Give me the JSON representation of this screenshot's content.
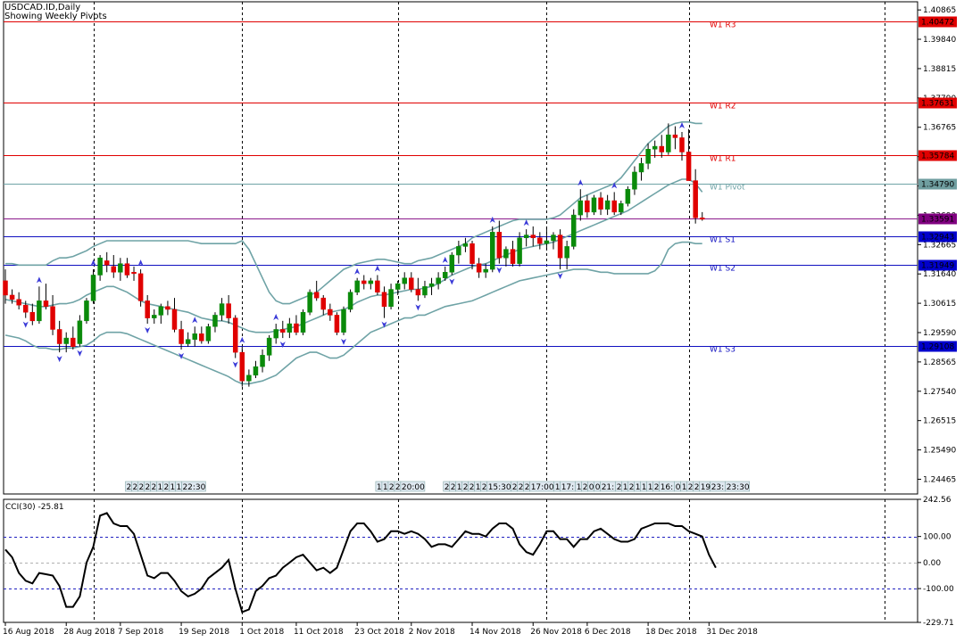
{
  "header": {
    "symbol": "USDCAD.ID,Daily",
    "subtitle": "Showing Weekly Pivots"
  },
  "chart_data": {
    "type": "candlestick",
    "price_ticks": [
      "1.40865",
      "1.39840",
      "1.38815",
      "1.37790",
      "1.36765",
      "1.35740",
      "1.34715",
      "1.33690",
      "1.32665",
      "1.31640",
      "1.30615",
      "1.29590",
      "1.28565",
      "1.27540",
      "1.26515",
      "1.25490",
      "1.24465"
    ],
    "price_range": [
      1.2395,
      1.4115
    ],
    "date_labels": [
      "16 Aug 2018",
      "28 Aug 2018",
      "7 Sep 2018",
      "19 Sep 2018",
      "1 Oct 2018",
      "11 Oct 2018",
      "23 Oct 2018",
      "2 Nov 2018",
      "14 Nov 2018",
      "26 Nov 2018",
      "6 Dec 2018",
      "18 Dec 2018",
      "31 Dec 2018"
    ],
    "date_label_bar_index": [
      0,
      9,
      17,
      26,
      35,
      43,
      52,
      60,
      69,
      78,
      86,
      95,
      104
    ],
    "session_separator_bar_index": [
      13,
      35,
      58,
      80,
      101,
      130
    ],
    "pivot_levels": [
      {
        "name": "W1 R3",
        "price": 1.40472,
        "color": "#e00000",
        "tag_color": "#e00000",
        "tag": "1.40472"
      },
      {
        "name": "W1 R2",
        "price": 1.37631,
        "color": "#e00000",
        "tag_color": "#e00000",
        "tag": "1.37631"
      },
      {
        "name": "W1 R1",
        "price": 1.35784,
        "color": "#e00000",
        "tag_color": "#e00000",
        "tag": "1.35784"
      },
      {
        "name": "W1 Pivot",
        "price": 1.3479,
        "color": "#6fa3a6",
        "tag_color": "#6f9ea0",
        "tag": "1.34790"
      },
      {
        "name": "",
        "price": 1.33591,
        "color": "#8b1a8b",
        "tag_color": "#800080",
        "tag": "1.33591"
      },
      {
        "name": "W1 S1",
        "price": 1.32943,
        "color": "#1010c0",
        "tag_color": "#0000cc",
        "tag": "1.32943"
      },
      {
        "name": "W1 S2",
        "price": 1.31949,
        "color": "#1010c0",
        "tag_color": "#0000cc",
        "tag": "1.31949"
      },
      {
        "name": "W1 S3",
        "price": 1.29108,
        "color": "#1010c0",
        "tag_color": "#0000cc",
        "tag": "1.29108"
      }
    ],
    "colors": {
      "bull": "#0a8a0a",
      "bear": "#e00000",
      "band": "#6fa3a6",
      "fractal": "#3a3ad8",
      "grid": "#000000"
    },
    "candles": [
      [
        1.314,
        1.318,
        1.306,
        1.309
      ],
      [
        1.309,
        1.311,
        1.306,
        1.3075
      ],
      [
        1.3075,
        1.31,
        1.304,
        1.3055
      ],
      [
        1.3055,
        1.307,
        1.301,
        1.303
      ],
      [
        1.303,
        1.306,
        1.2985,
        1.3
      ],
      [
        1.3,
        1.312,
        1.299,
        1.307
      ],
      [
        1.307,
        1.313,
        1.304,
        1.305
      ],
      [
        1.305,
        1.309,
        1.295,
        1.297
      ],
      [
        1.297,
        1.3,
        1.289,
        1.292
      ],
      [
        1.292,
        1.296,
        1.289,
        1.294
      ],
      [
        1.294,
        1.298,
        1.29,
        1.291
      ],
      [
        1.292,
        1.302,
        1.291,
        1.3
      ],
      [
        1.3,
        1.308,
        1.299,
        1.307
      ],
      [
        1.307,
        1.318,
        1.306,
        1.316
      ],
      [
        1.316,
        1.323,
        1.314,
        1.322
      ],
      [
        1.321,
        1.324,
        1.317,
        1.3195
      ],
      [
        1.319,
        1.323,
        1.315,
        1.317
      ],
      [
        1.317,
        1.322,
        1.314,
        1.32
      ],
      [
        1.32,
        1.322,
        1.315,
        1.316
      ],
      [
        1.317,
        1.319,
        1.314,
        1.3165
      ],
      [
        1.3165,
        1.318,
        1.305,
        1.307
      ],
      [
        1.307,
        1.309,
        1.299,
        1.301
      ],
      [
        1.301,
        1.304,
        1.299,
        1.302
      ],
      [
        1.302,
        1.306,
        1.299,
        1.305
      ],
      [
        1.305,
        1.307,
        1.302,
        1.304
      ],
      [
        1.304,
        1.308,
        1.296,
        1.297
      ],
      [
        1.297,
        1.3,
        1.29,
        1.292
      ],
      [
        1.292,
        1.296,
        1.291,
        1.2935
      ],
      [
        1.2935,
        1.298,
        1.291,
        1.2955
      ],
      [
        1.2955,
        1.298,
        1.292,
        1.293
      ],
      [
        1.293,
        1.299,
        1.292,
        1.298
      ],
      [
        1.298,
        1.303,
        1.296,
        1.302
      ],
      [
        1.302,
        1.308,
        1.3,
        1.306
      ],
      [
        1.306,
        1.309,
        1.299,
        1.301
      ],
      [
        1.301,
        1.302,
        1.287,
        1.289
      ],
      [
        1.289,
        1.291,
        1.277,
        1.279
      ],
      [
        1.279,
        1.283,
        1.277,
        1.281
      ],
      [
        1.281,
        1.286,
        1.28,
        1.284
      ],
      [
        1.284,
        1.29,
        1.282,
        1.288
      ],
      [
        1.288,
        1.295,
        1.286,
        1.294
      ],
      [
        1.294,
        1.299,
        1.292,
        1.297
      ],
      [
        1.297,
        1.3,
        1.294,
        1.296
      ],
      [
        1.296,
        1.301,
        1.294,
        1.299
      ],
      [
        1.299,
        1.302,
        1.295,
        1.296
      ],
      [
        1.296,
        1.304,
        1.295,
        1.303
      ],
      [
        1.303,
        1.311,
        1.302,
        1.31
      ],
      [
        1.31,
        1.314,
        1.307,
        1.308
      ],
      [
        1.308,
        1.309,
        1.302,
        1.304
      ],
      [
        1.304,
        1.306,
        1.3,
        1.302
      ],
      [
        1.302,
        1.303,
        1.295,
        1.296
      ],
      [
        1.296,
        1.305,
        1.295,
        1.304
      ],
      [
        1.304,
        1.311,
        1.303,
        1.31
      ],
      [
        1.31,
        1.315,
        1.309,
        1.314
      ],
      [
        1.314,
        1.316,
        1.311,
        1.313
      ],
      [
        1.313,
        1.315,
        1.311,
        1.314
      ],
      [
        1.314,
        1.316,
        1.309,
        1.31
      ],
      [
        1.31,
        1.312,
        1.301,
        1.305
      ],
      [
        1.305,
        1.313,
        1.304,
        1.311
      ],
      [
        1.311,
        1.314,
        1.309,
        1.313
      ],
      [
        1.313,
        1.317,
        1.311,
        1.315
      ],
      [
        1.315,
        1.317,
        1.31,
        1.311
      ],
      [
        1.311,
        1.315,
        1.307,
        1.309
      ],
      [
        1.309,
        1.314,
        1.308,
        1.312
      ],
      [
        1.312,
        1.315,
        1.309,
        1.313
      ],
      [
        1.313,
        1.317,
        1.311,
        1.315
      ],
      [
        1.315,
        1.319,
        1.314,
        1.317
      ],
      [
        1.317,
        1.324,
        1.316,
        1.323
      ],
      [
        1.323,
        1.328,
        1.32,
        1.326
      ],
      [
        1.326,
        1.329,
        1.324,
        1.327
      ],
      [
        1.327,
        1.328,
        1.318,
        1.32
      ],
      [
        1.32,
        1.322,
        1.315,
        1.317
      ],
      [
        1.317,
        1.32,
        1.315,
        1.318
      ],
      [
        1.318,
        1.333,
        1.317,
        1.331
      ],
      [
        1.331,
        1.335,
        1.32,
        1.322
      ],
      [
        1.322,
        1.326,
        1.319,
        1.325
      ],
      [
        1.325,
        1.328,
        1.319,
        1.32
      ],
      [
        1.32,
        1.331,
        1.319,
        1.329
      ],
      [
        1.329,
        1.332,
        1.326,
        1.33
      ],
      [
        1.33,
        1.333,
        1.326,
        1.329
      ],
      [
        1.329,
        1.331,
        1.325,
        1.327
      ],
      [
        1.327,
        1.333,
        1.325,
        1.328
      ],
      [
        1.328,
        1.331,
        1.325,
        1.33
      ],
      [
        1.33,
        1.332,
        1.318,
        1.322
      ],
      [
        1.322,
        1.328,
        1.318,
        1.326
      ],
      [
        1.326,
        1.339,
        1.325,
        1.337
      ],
      [
        1.337,
        1.346,
        1.335,
        1.342
      ],
      [
        1.342,
        1.344,
        1.336,
        1.338
      ],
      [
        1.338,
        1.344,
        1.337,
        1.343
      ],
      [
        1.343,
        1.345,
        1.337,
        1.339
      ],
      [
        1.339,
        1.344,
        1.337,
        1.342
      ],
      [
        1.342,
        1.345,
        1.337,
        1.338
      ],
      [
        1.338,
        1.342,
        1.337,
        1.341
      ],
      [
        1.341,
        1.347,
        1.34,
        1.346
      ],
      [
        1.346,
        1.354,
        1.344,
        1.352
      ],
      [
        1.352,
        1.357,
        1.349,
        1.355
      ],
      [
        1.355,
        1.362,
        1.353,
        1.36
      ],
      [
        1.36,
        1.363,
        1.357,
        1.361
      ],
      [
        1.361,
        1.365,
        1.357,
        1.359
      ],
      [
        1.359,
        1.369,
        1.358,
        1.365
      ],
      [
        1.365,
        1.368,
        1.36,
        1.364
      ],
      [
        1.364,
        1.366,
        1.356,
        1.359
      ],
      [
        1.359,
        1.367,
        1.349,
        1.349
      ],
      [
        1.349,
        1.353,
        1.334,
        1.336
      ],
      [
        1.336,
        1.338,
        1.335,
        1.3355
      ]
    ],
    "bands": {
      "upper": [
        1.32,
        1.32,
        1.3195,
        1.3195,
        1.3195,
        1.3195,
        1.3195,
        1.321,
        1.322,
        1.322,
        1.3225,
        1.3235,
        1.3245,
        1.326,
        1.327,
        1.328,
        1.328,
        1.328,
        1.328,
        1.328,
        1.328,
        1.328,
        1.328,
        1.328,
        1.328,
        1.328,
        1.328,
        1.328,
        1.3275,
        1.327,
        1.327,
        1.327,
        1.327,
        1.327,
        1.327,
        1.328,
        1.325,
        1.32,
        1.315,
        1.31,
        1.307,
        1.306,
        1.306,
        1.307,
        1.308,
        1.309,
        1.31,
        1.312,
        1.314,
        1.316,
        1.318,
        1.319,
        1.32,
        1.3205,
        1.321,
        1.3215,
        1.3215,
        1.321,
        1.3205,
        1.32,
        1.32,
        1.321,
        1.3215,
        1.322,
        1.323,
        1.324,
        1.325,
        1.326,
        1.327,
        1.329,
        1.33,
        1.331,
        1.332,
        1.333,
        1.334,
        1.335,
        1.3355,
        1.3355,
        1.3355,
        1.3355,
        1.3355,
        1.336,
        1.337,
        1.339,
        1.341,
        1.343,
        1.344,
        1.345,
        1.346,
        1.347,
        1.348,
        1.35,
        1.353,
        1.356,
        1.359,
        1.362,
        1.364,
        1.366,
        1.368,
        1.369,
        1.3695,
        1.3695,
        1.369,
        1.369
      ],
      "middle": [
        1.3075,
        1.307,
        1.3065,
        1.306,
        1.3055,
        1.305,
        1.305,
        1.3055,
        1.306,
        1.306,
        1.3065,
        1.3075,
        1.309,
        1.31,
        1.311,
        1.312,
        1.312,
        1.311,
        1.31,
        1.3085,
        1.307,
        1.306,
        1.3055,
        1.305,
        1.3045,
        1.304,
        1.3035,
        1.303,
        1.302,
        1.301,
        1.3005,
        1.3,
        1.3,
        1.2995,
        1.2985,
        1.2975,
        1.2965,
        1.296,
        1.296,
        1.296,
        1.2965,
        1.297,
        1.2975,
        1.298,
        1.299,
        1.3,
        1.301,
        1.302,
        1.303,
        1.3035,
        1.304,
        1.305,
        1.3065,
        1.3075,
        1.3085,
        1.309,
        1.309,
        1.3095,
        1.31,
        1.3105,
        1.311,
        1.311,
        1.3115,
        1.312,
        1.313,
        1.3145,
        1.316,
        1.317,
        1.318,
        1.319,
        1.3195,
        1.32,
        1.321,
        1.322,
        1.323,
        1.324,
        1.325,
        1.3255,
        1.326,
        1.3265,
        1.327,
        1.3275,
        1.3285,
        1.3295,
        1.3305,
        1.3315,
        1.3325,
        1.3335,
        1.3345,
        1.3355,
        1.3365,
        1.3375,
        1.3385,
        1.34,
        1.3415,
        1.343,
        1.3445,
        1.346,
        1.3475,
        1.3485,
        1.3495,
        1.3495,
        1.348,
        1.345
      ],
      "lower": [
        1.295,
        1.2945,
        1.294,
        1.293,
        1.2915,
        1.2905,
        1.2905,
        1.29,
        1.29,
        1.2905,
        1.2905,
        1.291,
        1.2915,
        1.293,
        1.295,
        1.296,
        1.296,
        1.296,
        1.2955,
        1.2945,
        1.2935,
        1.2925,
        1.2915,
        1.2905,
        1.2895,
        1.2885,
        1.2875,
        1.2865,
        1.2855,
        1.2845,
        1.2835,
        1.2825,
        1.2815,
        1.2805,
        1.279,
        1.278,
        1.278,
        1.2785,
        1.279,
        1.28,
        1.281,
        1.283,
        1.285,
        1.287,
        1.288,
        1.289,
        1.289,
        1.288,
        1.287,
        1.287,
        1.288,
        1.29,
        1.292,
        1.294,
        1.296,
        1.297,
        1.298,
        1.299,
        1.3,
        1.301,
        1.301,
        1.302,
        1.302,
        1.303,
        1.304,
        1.305,
        1.3055,
        1.306,
        1.3065,
        1.307,
        1.308,
        1.309,
        1.31,
        1.311,
        1.312,
        1.313,
        1.314,
        1.3145,
        1.315,
        1.3155,
        1.316,
        1.3165,
        1.317,
        1.3175,
        1.318,
        1.318,
        1.318,
        1.3175,
        1.317,
        1.317,
        1.3165,
        1.3165,
        1.3165,
        1.3165,
        1.3165,
        1.3165,
        1.3175,
        1.32,
        1.325,
        1.327,
        1.3275,
        1.3275,
        1.327,
        1.327
      ]
    },
    "fractals_up": [
      5,
      13,
      20,
      28,
      35,
      40,
      52,
      55,
      65,
      72,
      77,
      85,
      90,
      100
    ],
    "fractals_down": [
      3,
      8,
      11,
      21,
      26,
      34,
      41,
      50,
      56,
      61,
      66,
      73,
      82
    ],
    "session_boxes": [
      {
        "labels": [
          "2",
          "2",
          "2",
          "2",
          "2",
          "1",
          "2",
          "1",
          "1",
          "22:30"
        ],
        "start_bar": 18
      },
      {
        "labels": [
          "1",
          "1",
          "2",
          "2",
          "20:00"
        ],
        "start_bar": 55
      },
      {
        "labels": [
          "2",
          "2",
          "1",
          "2",
          "2",
          "1",
          "2",
          "15:30",
          "2",
          "2",
          "2",
          "17:00",
          "1",
          "17:",
          "1",
          "2",
          "0",
          "0",
          "21:",
          "2",
          "1",
          "2",
          "1",
          "1",
          "1",
          "2",
          "16:",
          "0",
          "1",
          "2",
          "2",
          "19",
          "23:",
          "23:30"
        ],
        "start_bar": 65
      }
    ],
    "cci": {
      "label": "CCI(30) -25.81",
      "ticks": [
        "242.56",
        "100.00",
        "0.00",
        "-100.00",
        "-229.71"
      ],
      "range": [
        -229.71,
        242.56
      ],
      "levels": [
        100,
        0,
        -100
      ],
      "values": [
        50,
        20,
        -40,
        -70,
        -80,
        -40,
        -45,
        -50,
        -90,
        -170,
        -170,
        -130,
        0,
        60,
        180,
        190,
        150,
        140,
        140,
        110,
        30,
        -50,
        -60,
        -40,
        -40,
        -70,
        -110,
        -130,
        -120,
        -100,
        -60,
        -40,
        -20,
        10,
        -100,
        -190,
        -180,
        -110,
        -90,
        -60,
        -50,
        -20,
        0,
        20,
        30,
        0,
        -30,
        -20,
        -40,
        -20,
        50,
        120,
        150,
        150,
        120,
        80,
        90,
        120,
        120,
        110,
        120,
        110,
        90,
        60,
        70,
        70,
        60,
        90,
        120,
        110,
        110,
        100,
        130,
        150,
        150,
        130,
        70,
        40,
        30,
        70,
        120,
        120,
        90,
        90,
        60,
        90,
        90,
        120,
        130,
        110,
        90,
        80,
        80,
        90,
        130,
        140,
        150,
        150,
        150,
        140,
        140,
        120,
        110,
        100,
        30,
        -20
      ]
    }
  }
}
